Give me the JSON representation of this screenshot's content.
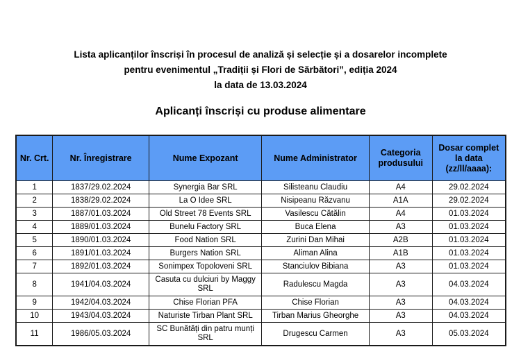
{
  "heading": {
    "line1": "Lista aplicanților înscriși în procesul de analiză și selecție și a dosarelor incomplete",
    "line2": "pentru evenimentul „Tradiții și Flori de Sărbători”, ediția 2024",
    "line3": "la data de 13.03.2024",
    "subtitle": "Aplicanți înscriși cu produse alimentare"
  },
  "table": {
    "header_color": "#5c9cf5",
    "columns": [
      "Nr. Crt.",
      "Nr. Înregistrare",
      "Nume Expozant",
      "Nume Administrator",
      "Categoria produsului",
      "Dosar complet la data (zz/ll/aaaa):"
    ],
    "rows": [
      [
        "1",
        "1837/29.02.2024",
        "Synergia Bar SRL",
        "Silisteanu Claudiu",
        "A4",
        "29.02.2024"
      ],
      [
        "2",
        "1838/29.02.2024",
        "La O Idee SRL",
        "Nisipeanu Răzvanu",
        "A1A",
        "29.02.2024"
      ],
      [
        "3",
        "1887/01.03.2024",
        "Old Street 78 Events SRL",
        "Vasilescu Cătălin",
        "A4",
        "01.03.2024"
      ],
      [
        "4",
        "1889/01.03.2024",
        "Bunelu Factory SRL",
        "Buca Elena",
        "A3",
        "01.03.2024"
      ],
      [
        "5",
        "1890/01.03.2024",
        "Food Nation SRL",
        "Zurini Dan Mihai",
        "A2B",
        "01.03.2024"
      ],
      [
        "6",
        "1891/01.03.2024",
        "Burgers Nation SRL",
        "Aliman Alina",
        "A1B",
        "01.03.2024"
      ],
      [
        "7",
        "1892/01.03.2024",
        "Sonimpex Topoloveni SRL",
        "Stanciulov Bibiana",
        "A3",
        "01.03.2024"
      ],
      [
        "8",
        "1941/04.03.2024",
        "Casuta cu dulciuri by Maggy SRL",
        "Radulescu Magda",
        "A3",
        "04.03.2024"
      ],
      [
        "9",
        "1942/04.03.2024",
        "Chise Florian PFA",
        "Chise Florian",
        "A3",
        "04.03.2024"
      ],
      [
        "10",
        "1943/04.03.2024",
        "Naturiste Tirban Plant SRL",
        "Tirban Marius Gheorghe",
        "A3",
        "04.03.2024"
      ],
      [
        "11",
        "1986/05.03.2024",
        "SC Bunătăți din patru munți SRL",
        "Drugescu Carmen",
        "A3",
        "05.03.2024"
      ]
    ]
  }
}
